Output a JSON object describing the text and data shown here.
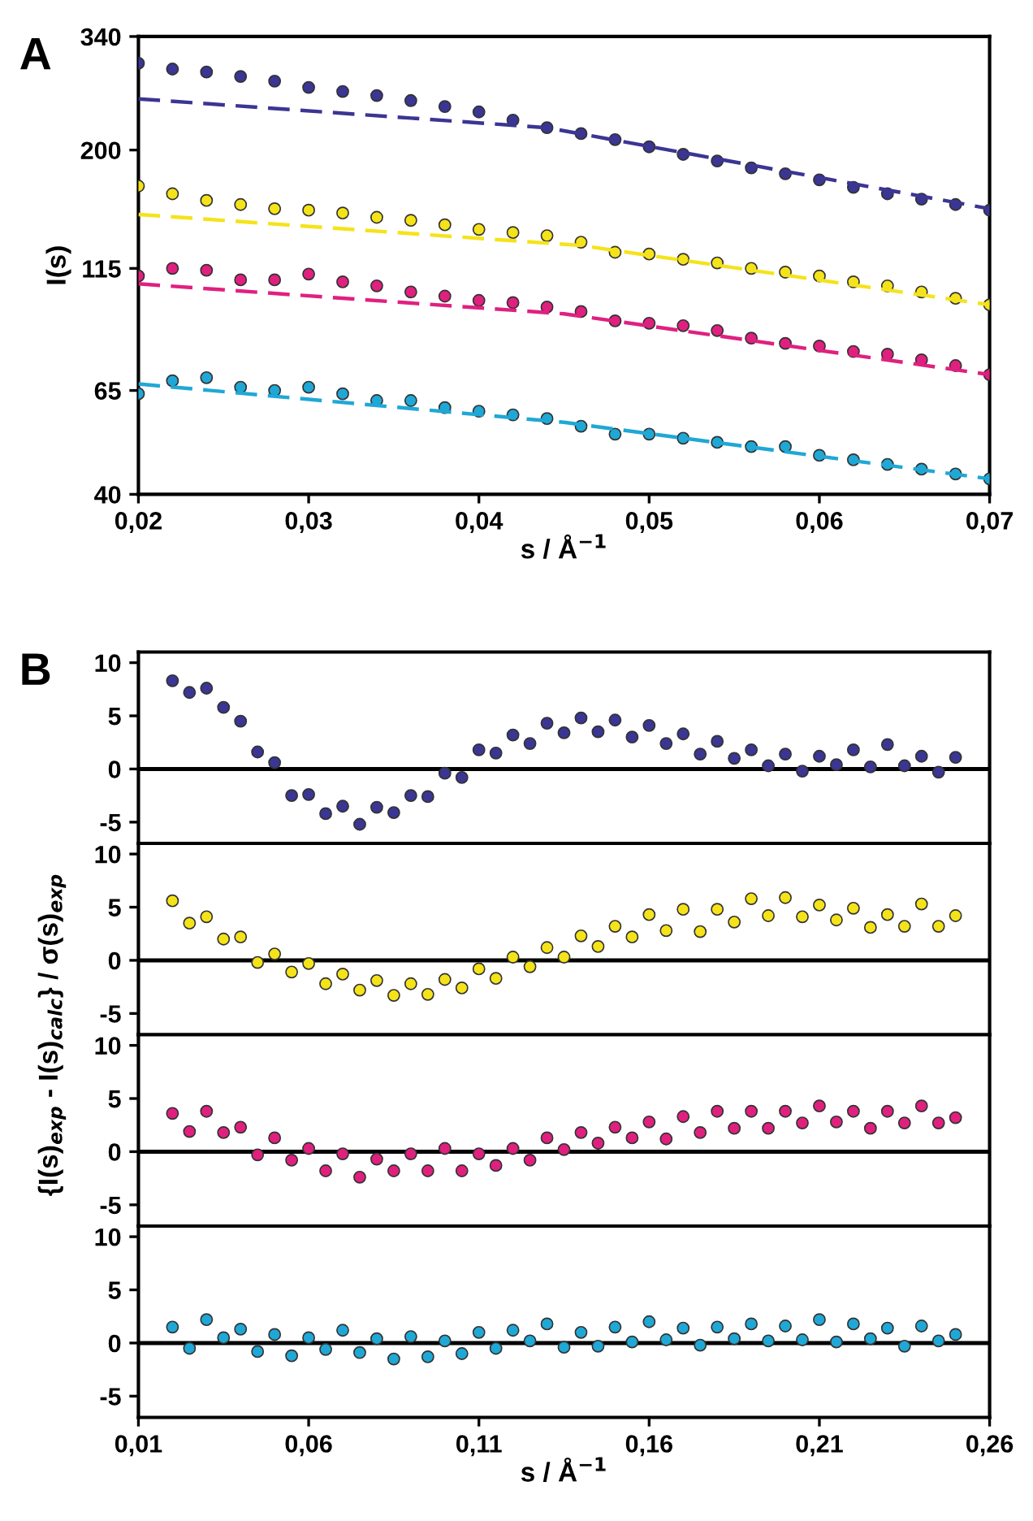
{
  "chart_data": [
    {
      "type": "scatter",
      "title": "A",
      "xlabel": "s / Å$^{−1}$",
      "ylabel": "I(s)",
      "log": "y",
      "marker": "circle",
      "grid": false,
      "xlim": [
        0.02,
        0.07
      ],
      "xticks": [
        {
          "value": 0.02,
          "label": "0,02"
        },
        {
          "value": 0.03,
          "label": "0,03"
        },
        {
          "value": 0.04,
          "label": "0,04"
        },
        {
          "value": 0.05,
          "label": "0,05"
        },
        {
          "value": 0.06,
          "label": "0,06"
        },
        {
          "value": 0.07,
          "label": "0,07"
        }
      ],
      "ylim": [
        40,
        340
      ],
      "yticks": [
        40,
        65,
        115,
        200,
        340
      ],
      "x": [
        0.02,
        0.022,
        0.024,
        0.026,
        0.028,
        0.03,
        0.032,
        0.034,
        0.036,
        0.038,
        0.04,
        0.042,
        0.044,
        0.046,
        0.048,
        0.05,
        0.052,
        0.054,
        0.056,
        0.058,
        0.06,
        0.062,
        0.064,
        0.066,
        0.068,
        0.07
      ],
      "series": [
        {
          "color": "#3b3593",
          "values": [
            300,
            292,
            288,
            282,
            276,
            268,
            263,
            258,
            252,
            245,
            239,
            230,
            222,
            216,
            210,
            203,
            196,
            190,
            184,
            179,
            174,
            168,
            163,
            159,
            155,
            151
          ]
        },
        {
          "color": "#f5e31a",
          "values": [
            169,
            163,
            158,
            155,
            152,
            151,
            149,
            146,
            144,
            141,
            138,
            136,
            134,
            130,
            124,
            123,
            120,
            118,
            115,
            113,
            111,
            108,
            106,
            103,
            100,
            97
          ]
        },
        {
          "color": "#e0207f",
          "values": [
            111,
            115,
            114,
            109,
            109,
            112,
            108,
            106,
            103,
            101,
            99,
            98,
            96,
            94,
            90,
            89,
            88,
            86,
            83,
            81,
            80,
            78,
            77,
            75,
            73,
            70
          ]
        },
        {
          "color": "#1fa8d6",
          "values": [
            64,
            68,
            69,
            66,
            65,
            66,
            64,
            62,
            62,
            60,
            59,
            58,
            57,
            55,
            53,
            53,
            52,
            51,
            50,
            50,
            48,
            47,
            46,
            45,
            44,
            43
          ]
        },
        {
          "type": "line",
          "marker": "none",
          "line_style": "dashed",
          "color": "#3b3593",
          "x": [
            0.02,
            0.044,
            0.07
          ],
          "values": [
            254,
            222,
            152
          ]
        },
        {
          "type": "line",
          "marker": "none",
          "line_style": "dashed",
          "color": "#f5e31a",
          "x": [
            0.02,
            0.046,
            0.07
          ],
          "values": [
            148,
            128,
            97
          ]
        },
        {
          "type": "line",
          "marker": "none",
          "line_style": "dashed",
          "color": "#e0207f",
          "x": [
            0.02,
            0.045,
            0.07
          ],
          "values": [
            107,
            93,
            70
          ]
        },
        {
          "type": "line",
          "marker": "none",
          "line_style": "dashed",
          "color": "#1fa8d6",
          "x": [
            0.02,
            0.045,
            0.07
          ],
          "values": [
            67,
            56,
            43
          ]
        }
      ]
    },
    {
      "type": "scatter",
      "title": "B",
      "marker": "circle",
      "grid": false,
      "tick_labels": "y",
      "xlim": [
        0.01,
        0.26
      ],
      "ylim": [
        -7,
        11
      ],
      "yticks": [
        -5,
        0,
        5,
        10
      ],
      "ref_lines": [
        {
          "axis": "y",
          "value": 0,
          "color": "#000000"
        }
      ],
      "x": [
        0.02,
        0.025,
        0.03,
        0.035,
        0.04,
        0.045,
        0.05,
        0.055,
        0.06,
        0.065,
        0.07,
        0.075,
        0.08,
        0.085,
        0.09,
        0.095,
        0.1,
        0.105,
        0.11,
        0.115,
        0.12,
        0.125,
        0.13,
        0.135,
        0.14,
        0.145,
        0.15,
        0.155,
        0.16,
        0.165,
        0.17,
        0.175,
        0.18,
        0.185,
        0.19,
        0.195,
        0.2,
        0.205,
        0.21,
        0.215,
        0.22,
        0.225,
        0.23,
        0.235,
        0.24,
        0.245,
        0.25
      ],
      "series": [
        {
          "color": "#3b3593",
          "values": [
            8.3,
            7.2,
            7.6,
            5.8,
            4.5,
            1.6,
            0.6,
            -2.5,
            -2.4,
            -4.2,
            -3.5,
            -5.2,
            -3.6,
            -4.1,
            -2.5,
            -2.6,
            -0.4,
            -0.8,
            1.8,
            1.5,
            3.2,
            2.4,
            4.3,
            3.4,
            4.8,
            3.5,
            4.6,
            3.0,
            4.1,
            2.4,
            3.3,
            1.4,
            2.6,
            1.0,
            1.8,
            0.3,
            1.4,
            -0.2,
            1.2,
            0.4,
            1.8,
            0.2,
            2.3,
            0.3,
            1.2,
            -0.3,
            1.1
          ]
        }
      ]
    },
    {
      "type": "scatter",
      "marker": "circle",
      "grid": false,
      "tick_labels": "y",
      "xlim": [
        0.01,
        0.26
      ],
      "ylim": [
        -7,
        11
      ],
      "yticks": [
        -5,
        0,
        5,
        10
      ],
      "ref_lines": [
        {
          "axis": "y",
          "value": 0,
          "color": "#000000"
        }
      ],
      "x": [
        0.02,
        0.025,
        0.03,
        0.035,
        0.04,
        0.045,
        0.05,
        0.055,
        0.06,
        0.065,
        0.07,
        0.075,
        0.08,
        0.085,
        0.09,
        0.095,
        0.1,
        0.105,
        0.11,
        0.115,
        0.12,
        0.125,
        0.13,
        0.135,
        0.14,
        0.145,
        0.15,
        0.155,
        0.16,
        0.165,
        0.17,
        0.175,
        0.18,
        0.185,
        0.19,
        0.195,
        0.2,
        0.205,
        0.21,
        0.215,
        0.22,
        0.225,
        0.23,
        0.235,
        0.24,
        0.245,
        0.25
      ],
      "series": [
        {
          "color": "#f5e31a",
          "values": [
            5.6,
            3.5,
            4.1,
            2.0,
            2.2,
            -0.2,
            0.6,
            -1.1,
            -0.3,
            -2.2,
            -1.3,
            -2.8,
            -1.9,
            -3.3,
            -2.2,
            -3.2,
            -1.8,
            -2.6,
            -0.8,
            -1.7,
            0.3,
            -0.6,
            1.2,
            0.3,
            2.3,
            1.3,
            3.2,
            2.2,
            4.3,
            2.8,
            4.8,
            2.7,
            4.8,
            3.6,
            5.8,
            4.2,
            5.9,
            4.1,
            5.2,
            3.8,
            4.9,
            3.1,
            4.3,
            3.2,
            5.3,
            3.2,
            4.2
          ]
        }
      ]
    },
    {
      "type": "scatter",
      "ylabel": "{I(s)$_{exp}$ - I(s)$_{calc}$} / σ(s)$_{exp}$",
      "marker": "circle",
      "grid": false,
      "tick_labels": "y",
      "xlim": [
        0.01,
        0.26
      ],
      "ylim": [
        -7,
        11
      ],
      "yticks": [
        -5,
        0,
        5,
        10
      ],
      "ref_lines": [
        {
          "axis": "y",
          "value": 0,
          "color": "#000000"
        }
      ],
      "x": [
        0.02,
        0.025,
        0.03,
        0.035,
        0.04,
        0.045,
        0.05,
        0.055,
        0.06,
        0.065,
        0.07,
        0.075,
        0.08,
        0.085,
        0.09,
        0.095,
        0.1,
        0.105,
        0.11,
        0.115,
        0.12,
        0.125,
        0.13,
        0.135,
        0.14,
        0.145,
        0.15,
        0.155,
        0.16,
        0.165,
        0.17,
        0.175,
        0.18,
        0.185,
        0.19,
        0.195,
        0.2,
        0.205,
        0.21,
        0.215,
        0.22,
        0.225,
        0.23,
        0.235,
        0.24,
        0.245,
        0.25
      ],
      "series": [
        {
          "color": "#e0207f",
          "values": [
            3.6,
            1.9,
            3.8,
            1.8,
            2.3,
            -0.3,
            1.3,
            -0.8,
            0.3,
            -1.8,
            -0.2,
            -2.4,
            -0.7,
            -1.8,
            -0.2,
            -1.8,
            0.3,
            -1.8,
            -0.2,
            -1.3,
            0.3,
            -0.8,
            1.3,
            0.2,
            1.8,
            0.8,
            2.3,
            1.3,
            2.8,
            1.2,
            3.3,
            1.8,
            3.8,
            2.2,
            3.8,
            2.2,
            3.8,
            2.7,
            4.3,
            2.8,
            3.8,
            2.2,
            3.8,
            2.7,
            4.3,
            2.7,
            3.2
          ]
        }
      ]
    },
    {
      "type": "scatter",
      "xlabel": "s / Å$^{−1}$",
      "marker": "circle",
      "grid": false,
      "xlim": [
        0.01,
        0.26
      ],
      "xticks": [
        {
          "value": 0.01,
          "label": "0,01"
        },
        {
          "value": 0.06,
          "label": "0,06"
        },
        {
          "value": 0.11,
          "label": "0,11"
        },
        {
          "value": 0.16,
          "label": "0,16"
        },
        {
          "value": 0.21,
          "label": "0,21"
        },
        {
          "value": 0.26,
          "label": "0,26"
        }
      ],
      "ylim": [
        -7,
        11
      ],
      "yticks": [
        -5,
        0,
        5,
        10
      ],
      "ref_lines": [
        {
          "axis": "y",
          "value": 0,
          "color": "#000000"
        }
      ],
      "x": [
        0.02,
        0.025,
        0.03,
        0.035,
        0.04,
        0.045,
        0.05,
        0.055,
        0.06,
        0.065,
        0.07,
        0.075,
        0.08,
        0.085,
        0.09,
        0.095,
        0.1,
        0.105,
        0.11,
        0.115,
        0.12,
        0.125,
        0.13,
        0.135,
        0.14,
        0.145,
        0.15,
        0.155,
        0.16,
        0.165,
        0.17,
        0.175,
        0.18,
        0.185,
        0.19,
        0.195,
        0.2,
        0.205,
        0.21,
        0.215,
        0.22,
        0.225,
        0.23,
        0.235,
        0.24,
        0.245,
        0.25
      ],
      "series": [
        {
          "color": "#1fa8d6",
          "values": [
            1.5,
            -0.5,
            2.2,
            0.5,
            1.3,
            -0.8,
            0.8,
            -1.2,
            0.5,
            -0.6,
            1.2,
            -0.9,
            0.4,
            -1.5,
            0.6,
            -1.3,
            0.2,
            -1.0,
            1.0,
            -0.5,
            1.2,
            0.2,
            1.8,
            -0.4,
            1.0,
            -0.3,
            1.5,
            0.1,
            2.0,
            0.3,
            1.4,
            -0.2,
            1.5,
            0.4,
            1.8,
            0.2,
            1.6,
            0.3,
            2.2,
            0.1,
            1.8,
            0.4,
            1.4,
            -0.3,
            1.6,
            0.2,
            0.8
          ]
        }
      ]
    }
  ]
}
